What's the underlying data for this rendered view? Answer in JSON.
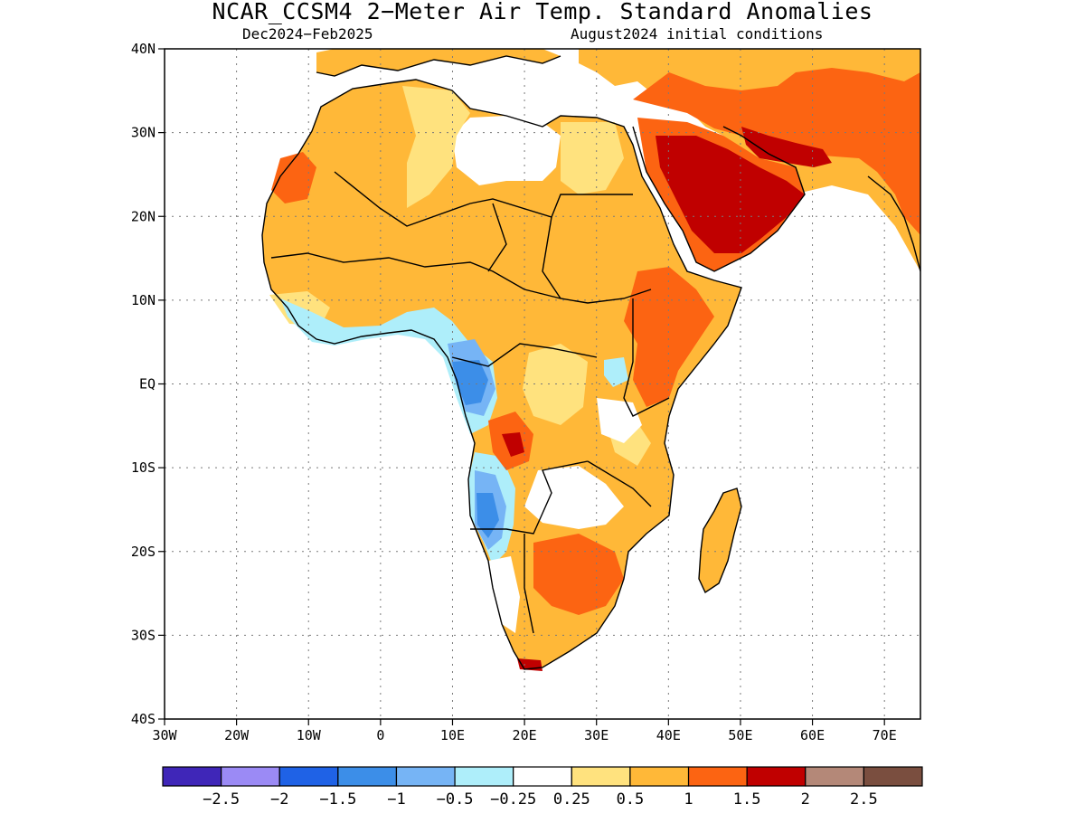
{
  "title": "NCAR_CCSM4 2−Meter Air Temp. Standard Anomalies",
  "subtitle_left": "Dec2024−Feb2025",
  "subtitle_right": "August2024 initial conditions",
  "map": {
    "lon_range": [
      -30,
      75
    ],
    "lat_range": [
      -40,
      40
    ],
    "grid": true,
    "y_ticks": [
      {
        "lat": 40,
        "label": "40N"
      },
      {
        "lat": 30,
        "label": "30N"
      },
      {
        "lat": 20,
        "label": "20N"
      },
      {
        "lat": 10,
        "label": "10N"
      },
      {
        "lat": 0,
        "label": "EQ"
      },
      {
        "lat": -10,
        "label": "10S"
      },
      {
        "lat": -20,
        "label": "20S"
      },
      {
        "lat": -30,
        "label": "30S"
      },
      {
        "lat": -40,
        "label": "40S"
      }
    ],
    "x_ticks": [
      {
        "lon": -30,
        "label": "30W"
      },
      {
        "lon": -20,
        "label": "20W"
      },
      {
        "lon": -10,
        "label": "10W"
      },
      {
        "lon": 0,
        "label": "0"
      },
      {
        "lon": 10,
        "label": "10E"
      },
      {
        "lon": 20,
        "label": "20E"
      },
      {
        "lon": 30,
        "label": "30E"
      },
      {
        "lon": 40,
        "label": "40E"
      },
      {
        "lon": 50,
        "label": "50E"
      },
      {
        "lon": 60,
        "label": "60E"
      },
      {
        "lon": 70,
        "label": "70E"
      }
    ]
  },
  "colorbar": {
    "colors": [
      "#3f26b8",
      "#9b8af5",
      "#1f62e6",
      "#3c8ee8",
      "#76b4f5",
      "#aeeefa",
      "#ffffff",
      "#ffe27e",
      "#ffb838",
      "#fc6412",
      "#c00000",
      "#b48878",
      "#7a4e3f"
    ],
    "labels": [
      "−2.5",
      "−2",
      "−1.5",
      "−1",
      "−0.5",
      "−0.25",
      "0.25",
      "0.5",
      "1",
      "1.5",
      "2",
      "2.5"
    ]
  }
}
